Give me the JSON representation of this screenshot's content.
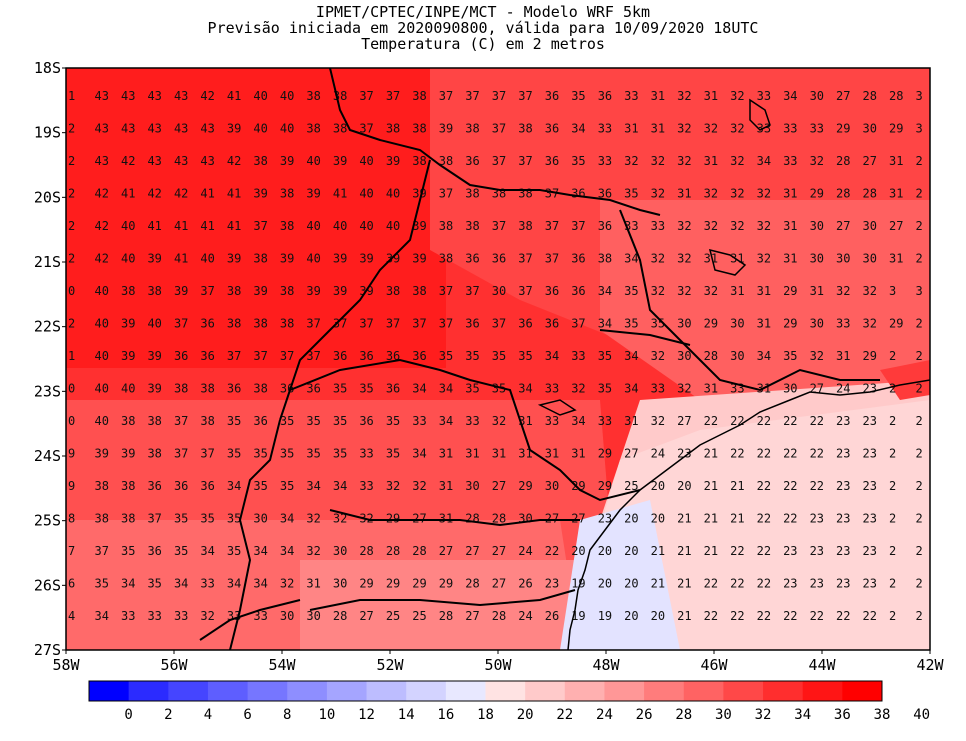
{
  "title": {
    "line1": "IPMET/CPTEC/INPE/MCT - Modelo WRF 5km",
    "line2": "Previsão iniciada em 2020090800, válida para 10/09/2020 18UTC",
    "line3": "Temperatura (C) em 2 metros"
  },
  "map": {
    "lat_labels": [
      "18S",
      "19S",
      "20S",
      "21S",
      "22S",
      "23S",
      "24S",
      "25S",
      "26S",
      "27S"
    ],
    "lon_labels": [
      "58W",
      "56W",
      "54W",
      "52W",
      "50W",
      "48W",
      "46W",
      "44W",
      "42W"
    ],
    "lat_range": [
      -27,
      -18
    ],
    "lon_range": [
      -58,
      -42
    ],
    "variable": "Temperatura (C) em 2 metros",
    "units": "C",
    "grid_values": [
      [
        1,
        43,
        43,
        43,
        43,
        42,
        41,
        40,
        40,
        38,
        38,
        37,
        37,
        38,
        37,
        37,
        37,
        37,
        36,
        35,
        36,
        33,
        31,
        32,
        31,
        32,
        33,
        34,
        30,
        27,
        28,
        28,
        3
      ],
      [
        2,
        43,
        43,
        43,
        43,
        43,
        39,
        40,
        40,
        38,
        38,
        37,
        38,
        38,
        39,
        38,
        37,
        38,
        36,
        34,
        33,
        31,
        31,
        32,
        32,
        32,
        33,
        33,
        33,
        29,
        30,
        29,
        3
      ],
      [
        2,
        43,
        42,
        43,
        43,
        43,
        42,
        38,
        39,
        40,
        39,
        40,
        39,
        38,
        38,
        36,
        37,
        37,
        36,
        35,
        33,
        32,
        32,
        32,
        31,
        32,
        34,
        33,
        32,
        28,
        27,
        31,
        2
      ],
      [
        2,
        42,
        41,
        42,
        42,
        41,
        41,
        39,
        38,
        39,
        41,
        40,
        40,
        39,
        37,
        38,
        38,
        38,
        37,
        36,
        36,
        35,
        32,
        31,
        32,
        32,
        32,
        31,
        29,
        28,
        28,
        31,
        2
      ],
      [
        2,
        42,
        40,
        41,
        41,
        41,
        41,
        37,
        38,
        40,
        40,
        40,
        40,
        39,
        38,
        38,
        37,
        38,
        37,
        37,
        36,
        33,
        33,
        32,
        32,
        32,
        32,
        31,
        30,
        27,
        30,
        27,
        2
      ],
      [
        2,
        42,
        40,
        39,
        41,
        40,
        39,
        38,
        39,
        40,
        39,
        39,
        39,
        39,
        38,
        36,
        36,
        37,
        37,
        36,
        38,
        34,
        32,
        32,
        31,
        31,
        32,
        31,
        30,
        30,
        30,
        31,
        2
      ],
      [
        0,
        40,
        38,
        38,
        39,
        37,
        38,
        39,
        38,
        39,
        39,
        39,
        38,
        38,
        37,
        37,
        30,
        37,
        36,
        36,
        34,
        35,
        32,
        32,
        32,
        31,
        31,
        29,
        31,
        32,
        32,
        3,
        3
      ],
      [
        2,
        40,
        39,
        40,
        37,
        36,
        38,
        38,
        38,
        37,
        37,
        37,
        37,
        37,
        37,
        36,
        37,
        36,
        36,
        37,
        34,
        35,
        35,
        30,
        29,
        30,
        31,
        29,
        30,
        33,
        32,
        29,
        2
      ],
      [
        1,
        40,
        39,
        39,
        36,
        36,
        37,
        37,
        37,
        37,
        36,
        36,
        36,
        36,
        35,
        35,
        35,
        35,
        34,
        33,
        35,
        34,
        32,
        30,
        28,
        30,
        34,
        35,
        32,
        31,
        29,
        2,
        2
      ],
      [
        0,
        40,
        40,
        39,
        38,
        38,
        36,
        38,
        36,
        36,
        35,
        35,
        36,
        34,
        34,
        35,
        35,
        34,
        33,
        32,
        35,
        34,
        33,
        32,
        31,
        33,
        31,
        30,
        27,
        24,
        23,
        2,
        2
      ],
      [
        0,
        40,
        38,
        38,
        37,
        38,
        35,
        36,
        35,
        35,
        35,
        36,
        35,
        33,
        34,
        33,
        32,
        31,
        33,
        34,
        33,
        31,
        32,
        27,
        22,
        22,
        22,
        22,
        22,
        23,
        23,
        2,
        2
      ],
      [
        9,
        39,
        39,
        38,
        37,
        37,
        35,
        35,
        35,
        35,
        35,
        33,
        35,
        34,
        31,
        31,
        31,
        31,
        31,
        31,
        29,
        27,
        24,
        23,
        21,
        22,
        22,
        22,
        22,
        23,
        23,
        2,
        2
      ],
      [
        9,
        38,
        38,
        36,
        36,
        36,
        34,
        35,
        35,
        34,
        34,
        33,
        32,
        32,
        31,
        30,
        27,
        29,
        30,
        29,
        29,
        25,
        20,
        20,
        21,
        21,
        22,
        22,
        22,
        23,
        23,
        2,
        2
      ],
      [
        8,
        38,
        38,
        37,
        35,
        35,
        35,
        30,
        34,
        32,
        32,
        32,
        29,
        27,
        31,
        28,
        28,
        30,
        27,
        27,
        23,
        20,
        20,
        21,
        21,
        21,
        22,
        22,
        23,
        23,
        23,
        2,
        2
      ],
      [
        7,
        37,
        35,
        36,
        35,
        34,
        35,
        34,
        34,
        32,
        30,
        28,
        28,
        28,
        27,
        27,
        27,
        24,
        22,
        20,
        20,
        20,
        21,
        21,
        21,
        22,
        22,
        23,
        23,
        23,
        23,
        2,
        2
      ],
      [
        6,
        35,
        34,
        35,
        34,
        33,
        34,
        34,
        32,
        31,
        30,
        29,
        29,
        29,
        29,
        28,
        27,
        26,
        23,
        19,
        20,
        20,
        21,
        21,
        22,
        22,
        22,
        23,
        23,
        23,
        23,
        2,
        2
      ],
      [
        4,
        34,
        33,
        33,
        33,
        32,
        33,
        33,
        30,
        30,
        28,
        27,
        25,
        25,
        28,
        27,
        28,
        24,
        26,
        19,
        19,
        20,
        20,
        21,
        22,
        22,
        22,
        22,
        22,
        22,
        22,
        2,
        2
      ]
    ]
  },
  "colorbar": {
    "labels": [
      "0",
      "2",
      "4",
      "6",
      "8",
      "10",
      "12",
      "14",
      "16",
      "18",
      "20",
      "22",
      "24",
      "26",
      "28",
      "30",
      "32",
      "34",
      "36",
      "38",
      "40"
    ],
    "colors": [
      "#0000ff",
      "#2b2bff",
      "#4545ff",
      "#5e5eff",
      "#7676ff",
      "#8e8eff",
      "#a5a5ff",
      "#bdbdff",
      "#d3d3ff",
      "#e8e8ff",
      "#ffe3e3",
      "#ffcaca",
      "#ffb0b0",
      "#ff9797",
      "#ff7c7c",
      "#ff6363",
      "#ff4848",
      "#ff2e2e",
      "#ff1515",
      "#ff0000"
    ]
  }
}
